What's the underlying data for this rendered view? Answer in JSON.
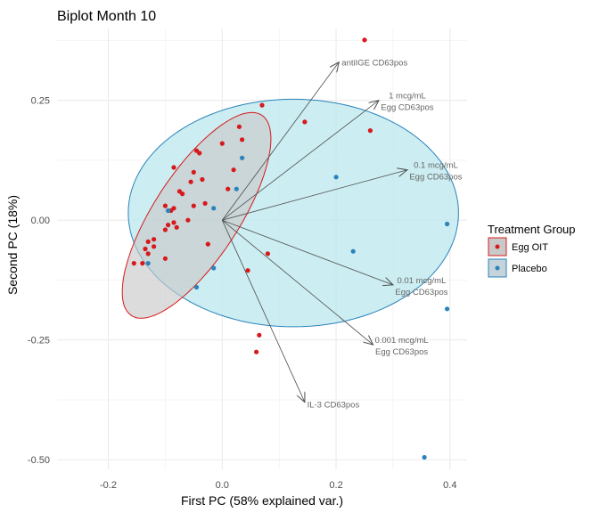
{
  "chart_data": {
    "type": "scatter",
    "title": "Biplot Month 10",
    "xlabel": "First PC (58% explained var.)",
    "ylabel": "Second PC (18%)",
    "xlim": [
      -0.29,
      0.43
    ],
    "ylim": [
      -0.52,
      0.4
    ],
    "xticks": [
      -0.2,
      0.0,
      0.2,
      0.4
    ],
    "xtick_labels": [
      "-0.2",
      "0.0",
      "0.2",
      "0.4"
    ],
    "yticks": [
      0.25,
      0.0,
      -0.25,
      -0.5
    ],
    "ytick_labels": [
      "0.25",
      "0.00",
      "-0.25",
      "-0.50"
    ],
    "grid": true,
    "legend": {
      "title": "Treatment Group",
      "placement": "right"
    },
    "colors": {
      "egg_oit": "#d7191c",
      "placebo": "#2b83ba",
      "egg_oit_ellipse_fill": "#c9c9c9",
      "placebo_ellipse_fill": "#bfe9ee",
      "arrow": "#4d4d4d",
      "grid": "#ebebeb"
    },
    "series": [
      {
        "name": "Egg OIT",
        "color": "#d7191c",
        "points": [
          [
            0.25,
            0.376
          ],
          [
            0.07,
            0.24
          ],
          [
            0.145,
            0.205
          ],
          [
            0.03,
            0.195
          ],
          [
            0.26,
            0.187
          ],
          [
            0.035,
            0.168
          ],
          [
            -0.045,
            0.145
          ],
          [
            -0.04,
            0.14
          ],
          [
            -0.085,
            0.11
          ],
          [
            0.0,
            0.16
          ],
          [
            -0.05,
            0.1
          ],
          [
            -0.055,
            0.08
          ],
          [
            -0.035,
            0.085
          ],
          [
            0.02,
            0.105
          ],
          [
            0.01,
            0.065
          ],
          [
            -0.075,
            0.06
          ],
          [
            -0.07,
            0.055
          ],
          [
            -0.03,
            0.035
          ],
          [
            -0.05,
            0.03
          ],
          [
            -0.1,
            0.03
          ],
          [
            -0.085,
            0.025
          ],
          [
            -0.09,
            0.02
          ],
          [
            -0.06,
            0.0
          ],
          [
            -0.085,
            -0.005
          ],
          [
            -0.095,
            -0.01
          ],
          [
            -0.08,
            -0.015
          ],
          [
            -0.1,
            -0.02
          ],
          [
            -0.12,
            -0.04
          ],
          [
            -0.13,
            -0.045
          ],
          [
            -0.12,
            -0.055
          ],
          [
            -0.135,
            -0.06
          ],
          [
            -0.13,
            -0.07
          ],
          [
            -0.1,
            -0.08
          ],
          [
            -0.14,
            -0.09
          ],
          [
            -0.155,
            -0.09
          ],
          [
            -0.025,
            -0.05
          ],
          [
            0.08,
            -0.07
          ],
          [
            0.045,
            -0.105
          ],
          [
            0.065,
            -0.24
          ],
          [
            0.06,
            -0.275
          ]
        ]
      },
      {
        "name": "Placebo",
        "color": "#2b83ba",
        "points": [
          [
            0.035,
            0.13
          ],
          [
            0.2,
            0.09
          ],
          [
            0.025,
            0.065
          ],
          [
            0.395,
            -0.008
          ],
          [
            -0.095,
            0.02
          ],
          [
            -0.015,
            0.025
          ],
          [
            0.23,
            -0.065
          ],
          [
            -0.015,
            -0.1
          ],
          [
            -0.045,
            -0.14
          ],
          [
            0.395,
            -0.185
          ],
          [
            -0.13,
            -0.09
          ],
          [
            0.355,
            -0.495
          ]
        ]
      }
    ],
    "ellipses": [
      {
        "group": "Egg OIT",
        "center": [
          -0.045,
          0.01
        ],
        "semi_axes": [
          0.21,
          0.075
        ],
        "angle_deg": 57
      },
      {
        "group": "Placebo",
        "center": [
          0.125,
          0.015
        ],
        "semi_axes": [
          0.29,
          0.2
        ],
        "angle_deg": 0
      }
    ],
    "loadings": [
      {
        "label": "antiIGE CD63pos",
        "x": 0.205,
        "y": 0.33
      },
      {
        "label": "1 mcg/mL\nEgg CD63pos",
        "x": 0.275,
        "y": 0.25
      },
      {
        "label": "0.1  mcg/mL\nEgg CD63pos",
        "x": 0.325,
        "y": 0.105
      },
      {
        "label": "0.01  mcg/mL\nEgg CD63pos",
        "x": 0.3,
        "y": -0.135
      },
      {
        "label": "0.001  mcg/mL\nEgg CD63pos",
        "x": 0.265,
        "y": -0.26
      },
      {
        "label": "IL-3 CD63pos",
        "x": 0.145,
        "y": -0.38
      }
    ]
  }
}
